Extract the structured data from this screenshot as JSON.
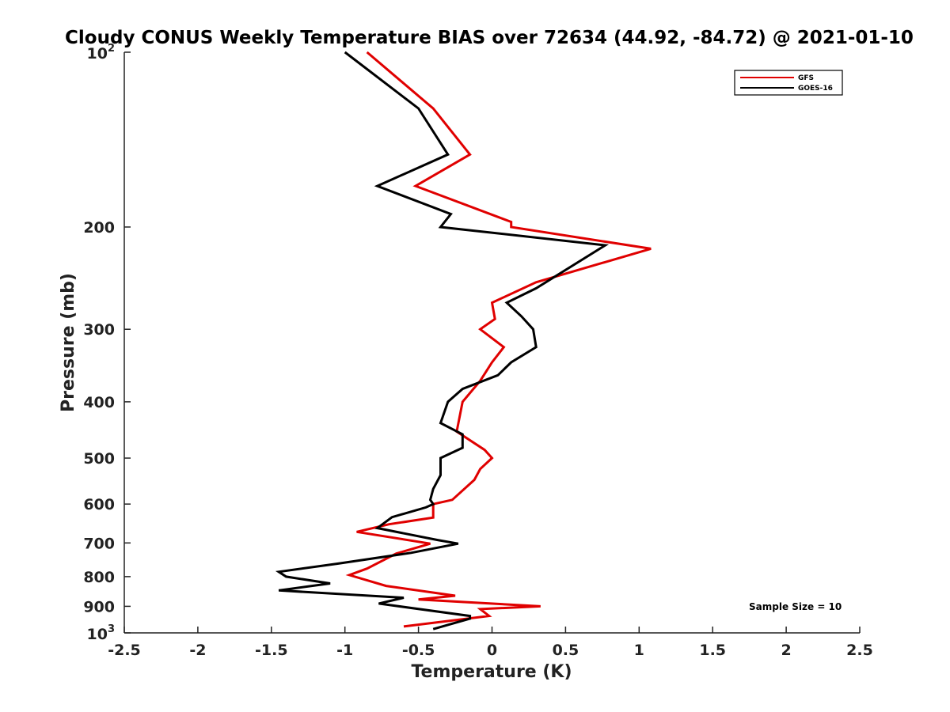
{
  "chart_data": {
    "type": "line",
    "title": "Cloudy CONUS Weekly Temperature BIAS over 72634 (44.92, -84.72) @ 2021-01-10",
    "xlabel": "Temperature (K)",
    "ylabel": "Pressure (mb)",
    "xlim": [
      -2.5,
      2.5
    ],
    "ylim": [
      100,
      1000
    ],
    "y_scale": "log",
    "y_reversed": true,
    "x_ticks": [
      "-2.5",
      "-2",
      "-1.5",
      "-1",
      "-0.5",
      "0",
      "0.5",
      "1",
      "1.5",
      "2",
      "2.5"
    ],
    "x_tick_values": [
      -2.5,
      -2,
      -1.5,
      -1,
      -0.5,
      0,
      0.5,
      1,
      1.5,
      2,
      2.5
    ],
    "y_ticks": [
      {
        "value": 100,
        "base": "10",
        "exp": "2"
      },
      {
        "value": 200,
        "label": "200"
      },
      {
        "value": 300,
        "label": "300"
      },
      {
        "value": 400,
        "label": "400"
      },
      {
        "value": 500,
        "label": "500"
      },
      {
        "value": 600,
        "label": "600"
      },
      {
        "value": 700,
        "label": "700"
      },
      {
        "value": 800,
        "label": "800"
      },
      {
        "value": 900,
        "label": "900"
      },
      {
        "value": 1000,
        "base": "10",
        "exp": "3"
      }
    ],
    "legend_position": "top-right",
    "grid": false,
    "annotation": "Sample Size = 10",
    "series": [
      {
        "name": "GFS",
        "color": "#e00000",
        "points": [
          {
            "x": -0.85,
            "y": 100
          },
          {
            "x": -0.4,
            "y": 125
          },
          {
            "x": -0.15,
            "y": 150
          },
          {
            "x": -0.52,
            "y": 170
          },
          {
            "x": 0.13,
            "y": 196
          },
          {
            "x": 0.13,
            "y": 200
          },
          {
            "x": 1.08,
            "y": 218
          },
          {
            "x": 0.3,
            "y": 249
          },
          {
            "x": 0.0,
            "y": 270
          },
          {
            "x": 0.02,
            "y": 288
          },
          {
            "x": -0.08,
            "y": 300
          },
          {
            "x": 0.08,
            "y": 322
          },
          {
            "x": 0.0,
            "y": 342
          },
          {
            "x": -0.08,
            "y": 368
          },
          {
            "x": -0.2,
            "y": 400
          },
          {
            "x": -0.24,
            "y": 450
          },
          {
            "x": -0.05,
            "y": 484
          },
          {
            "x": 0.0,
            "y": 500
          },
          {
            "x": -0.08,
            "y": 522
          },
          {
            "x": -0.12,
            "y": 545
          },
          {
            "x": -0.27,
            "y": 590
          },
          {
            "x": -0.4,
            "y": 600
          },
          {
            "x": -0.4,
            "y": 633
          },
          {
            "x": -0.7,
            "y": 650
          },
          {
            "x": -0.92,
            "y": 670
          },
          {
            "x": -0.42,
            "y": 702
          },
          {
            "x": -0.65,
            "y": 730
          },
          {
            "x": -0.85,
            "y": 775
          },
          {
            "x": -0.97,
            "y": 795
          },
          {
            "x": -0.72,
            "y": 830
          },
          {
            "x": -0.25,
            "y": 863
          },
          {
            "x": -0.5,
            "y": 876
          },
          {
            "x": 0.33,
            "y": 900
          },
          {
            "x": -0.08,
            "y": 910
          },
          {
            "x": -0.02,
            "y": 935
          },
          {
            "x": -0.6,
            "y": 975
          }
        ]
      },
      {
        "name": "GOES-16",
        "color": "#000000",
        "points": [
          {
            "x": -1.0,
            "y": 100
          },
          {
            "x": -0.5,
            "y": 125
          },
          {
            "x": -0.3,
            "y": 150
          },
          {
            "x": -0.78,
            "y": 170
          },
          {
            "x": -0.28,
            "y": 190
          },
          {
            "x": -0.35,
            "y": 200
          },
          {
            "x": 0.77,
            "y": 215
          },
          {
            "x": 0.3,
            "y": 255
          },
          {
            "x": 0.1,
            "y": 270
          },
          {
            "x": 0.2,
            "y": 285
          },
          {
            "x": 0.28,
            "y": 300
          },
          {
            "x": 0.3,
            "y": 322
          },
          {
            "x": 0.13,
            "y": 342
          },
          {
            "x": 0.04,
            "y": 360
          },
          {
            "x": -0.2,
            "y": 380
          },
          {
            "x": -0.3,
            "y": 400
          },
          {
            "x": -0.35,
            "y": 435
          },
          {
            "x": -0.2,
            "y": 455
          },
          {
            "x": -0.2,
            "y": 480
          },
          {
            "x": -0.35,
            "y": 500
          },
          {
            "x": -0.35,
            "y": 535
          },
          {
            "x": -0.4,
            "y": 565
          },
          {
            "x": -0.42,
            "y": 590
          },
          {
            "x": -0.4,
            "y": 600
          },
          {
            "x": -0.45,
            "y": 608
          },
          {
            "x": -0.68,
            "y": 632
          },
          {
            "x": -0.78,
            "y": 660
          },
          {
            "x": -0.37,
            "y": 692
          },
          {
            "x": -0.23,
            "y": 702
          },
          {
            "x": -0.55,
            "y": 728
          },
          {
            "x": -1.05,
            "y": 760
          },
          {
            "x": -1.45,
            "y": 785
          },
          {
            "x": -1.4,
            "y": 800
          },
          {
            "x": -1.1,
            "y": 822
          },
          {
            "x": -1.45,
            "y": 845
          },
          {
            "x": -0.6,
            "y": 870
          },
          {
            "x": -0.77,
            "y": 890
          },
          {
            "x": -0.15,
            "y": 935
          },
          {
            "x": -0.15,
            "y": 945
          },
          {
            "x": -0.4,
            "y": 985
          }
        ]
      }
    ]
  }
}
